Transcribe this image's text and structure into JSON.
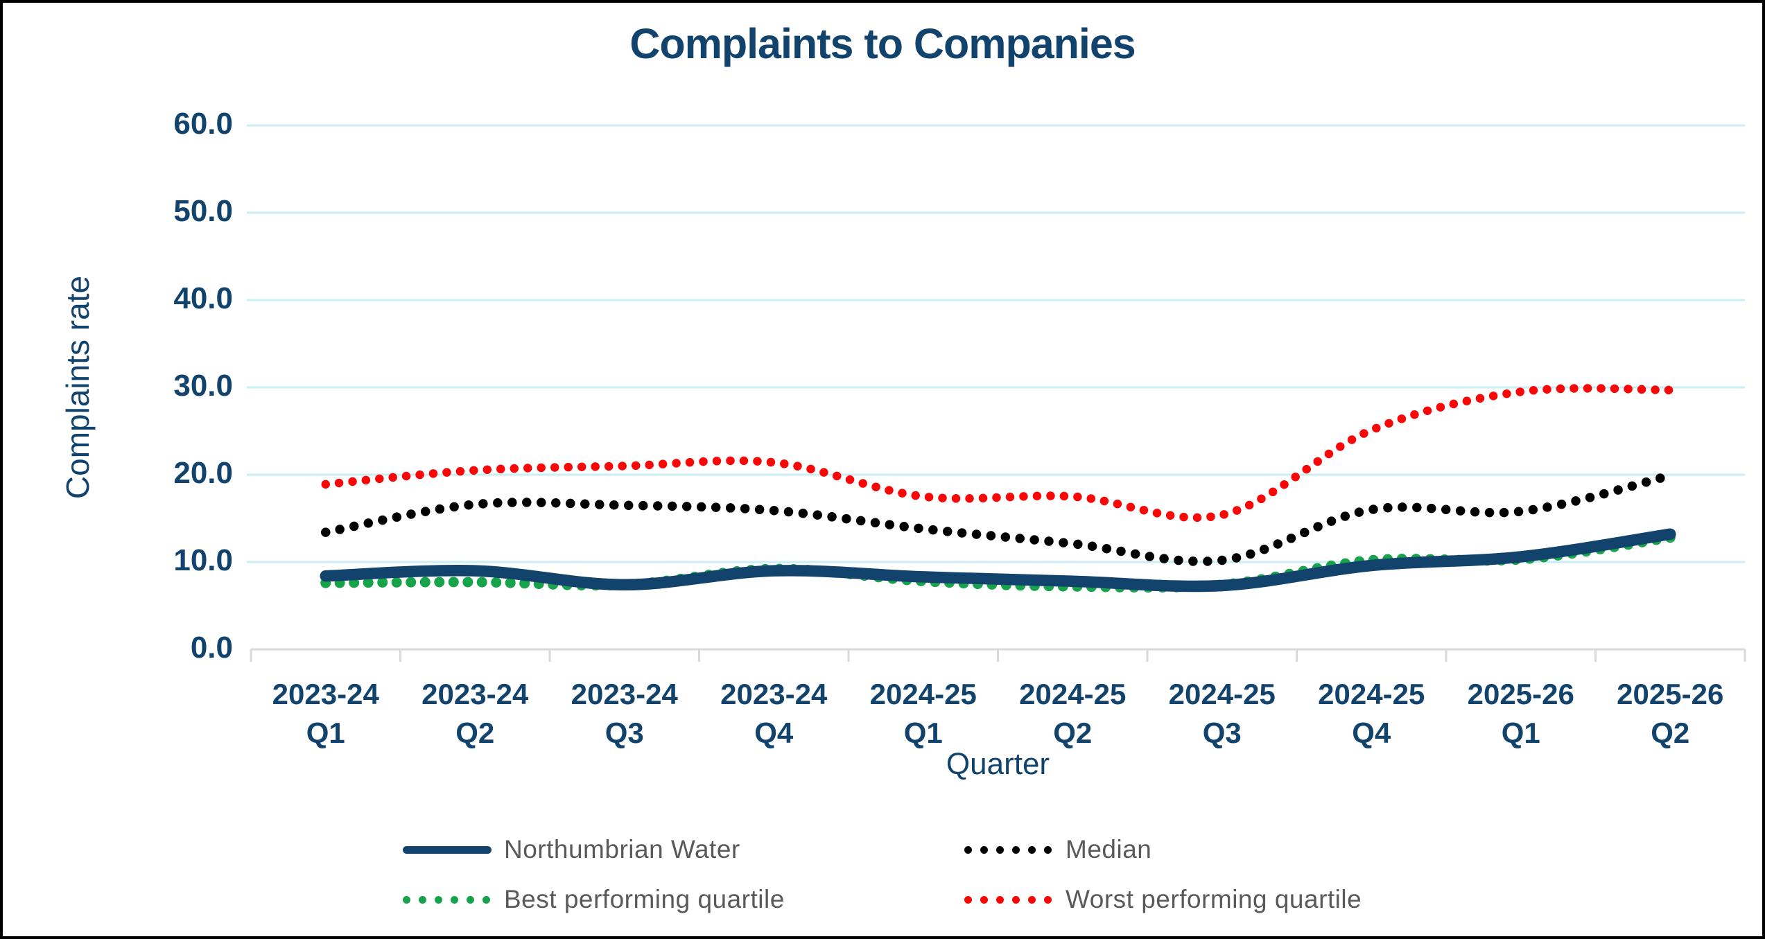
{
  "title": "Complaints to Companies",
  "axes": {
    "y_title": "Complaints rate",
    "x_title": "Quarter",
    "y_tick_labels": [
      "60.0",
      "50.0",
      "40.0",
      "30.0",
      "20.0",
      "10.0",
      "0.0"
    ],
    "y_tick_values": [
      60,
      50,
      40,
      30,
      20,
      10,
      0
    ]
  },
  "colors": {
    "navy": "#12436D",
    "black": "#000000",
    "green": "#17A349",
    "red": "#F90606",
    "gridline": "#C9EEF4",
    "axis_line": "#D9D9D9",
    "legend_text": "#595959",
    "background": "#FFFFFF"
  },
  "chart_data": {
    "type": "line",
    "title": "Complaints to Companies",
    "xlabel": "Quarter",
    "ylabel": "Complaints rate",
    "ylim": [
      0,
      60
    ],
    "y_tick_step": 10,
    "grid": "horizontal-only",
    "legend_position": "bottom",
    "categories": [
      {
        "year": "2023-24",
        "quarter": "Q1"
      },
      {
        "year": "2023-24",
        "quarter": "Q2"
      },
      {
        "year": "2023-24",
        "quarter": "Q3"
      },
      {
        "year": "2023-24",
        "quarter": "Q4"
      },
      {
        "year": "2024-25",
        "quarter": "Q1"
      },
      {
        "year": "2024-25",
        "quarter": "Q2"
      },
      {
        "year": "2024-25",
        "quarter": "Q3"
      },
      {
        "year": "2024-25",
        "quarter": "Q4"
      },
      {
        "year": "2025-26",
        "quarter": "Q1"
      },
      {
        "year": "2025-26",
        "quarter": "Q2"
      }
    ],
    "series": [
      {
        "name": "Northumbrian Water",
        "style": "solid",
        "color": "#12436D",
        "values": [
          8.4,
          9.0,
          7.4,
          9.0,
          8.3,
          7.8,
          7.3,
          9.6,
          10.6,
          13.2
        ]
      },
      {
        "name": "Median",
        "style": "dotted",
        "color": "#000000",
        "values": [
          13.4,
          16.6,
          16.5,
          15.9,
          13.8,
          12.1,
          10.2,
          16.0,
          15.8,
          19.9
        ]
      },
      {
        "name": "Best performing quartile",
        "style": "dotted",
        "color": "#17A349",
        "values": [
          7.6,
          7.7,
          7.4,
          9.2,
          7.8,
          7.2,
          7.4,
          10.2,
          10.3,
          12.8
        ]
      },
      {
        "name": "Worst performing quartile",
        "style": "dotted",
        "color": "#F90606",
        "values": [
          18.9,
          20.5,
          21.0,
          21.4,
          17.5,
          17.5,
          15.4,
          25.1,
          29.5,
          29.7
        ]
      }
    ]
  }
}
